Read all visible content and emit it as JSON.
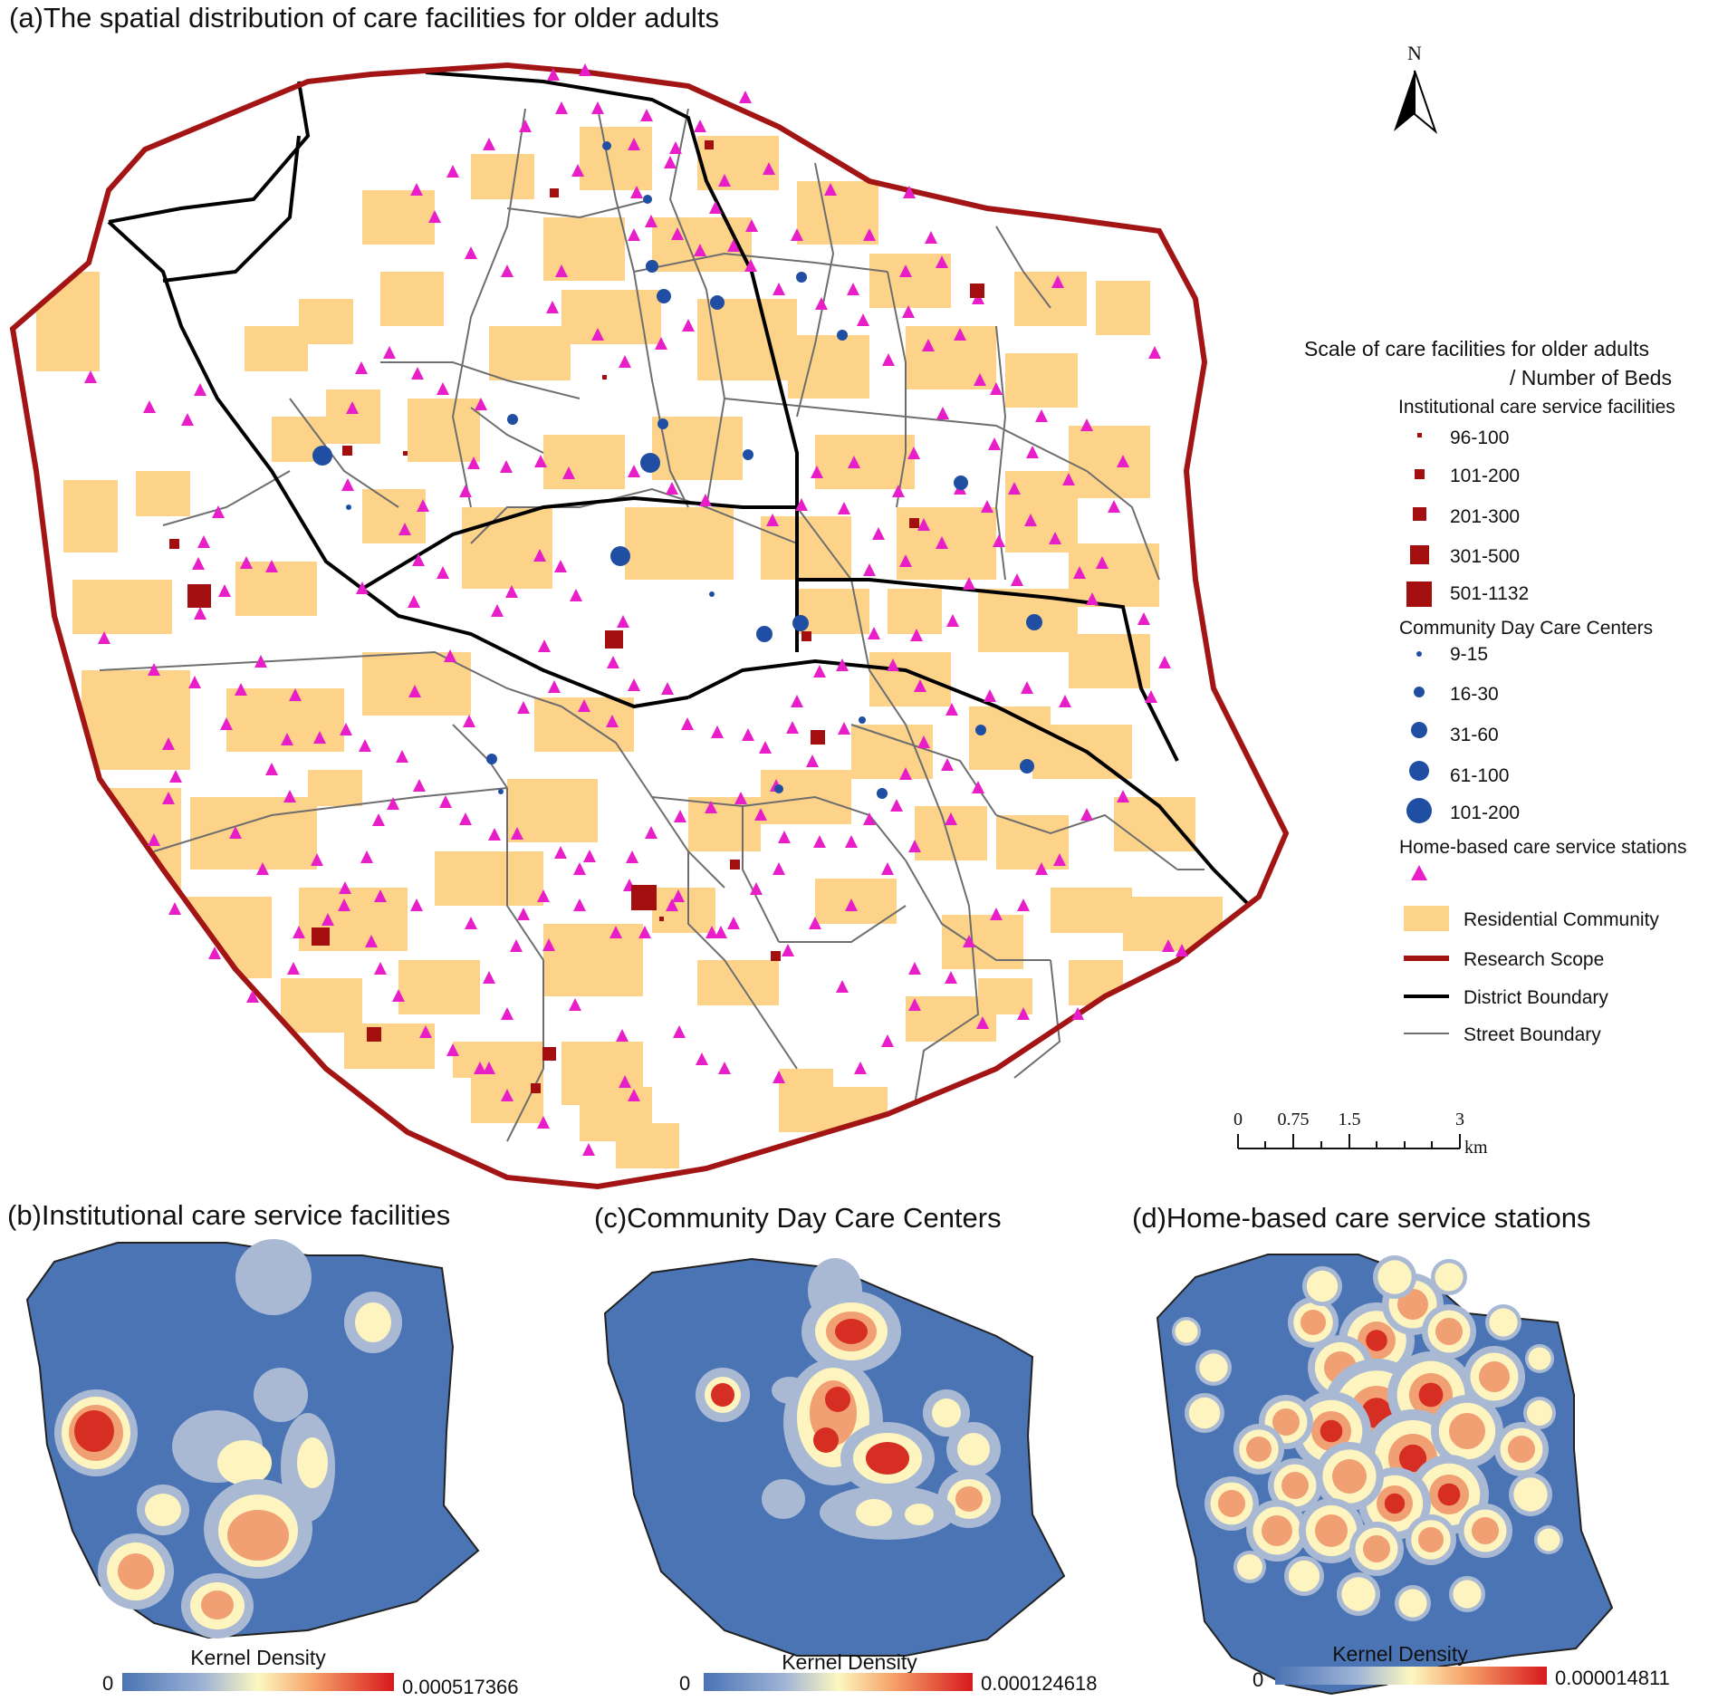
{
  "titles": {
    "a": "(a)The spatial distribution of care facilities for older adults",
    "b": "(b)Institutional care service facilities",
    "c": "(c)Community Day Care Centers",
    "d": "(d)Home-based care service stations"
  },
  "north_label": "N",
  "legend": {
    "heading_line1": "Scale of care facilities for older adults",
    "heading_line2": "/ Number of Beds",
    "institutional_title": "Institutional care service facilities",
    "institutional_classes": [
      "96-100",
      "101-200",
      "201-300",
      "301-500",
      "501-1132"
    ],
    "community_title": "Community Day Care Centers",
    "community_classes": [
      "9-15",
      "16-30",
      "31-60",
      "61-100",
      "101-200"
    ],
    "home_title": "Home-based care service stations",
    "residential": "Residential Community",
    "research_scope": "Research Scope",
    "district_boundary": "District Boundary",
    "street_boundary": "Street Boundary"
  },
  "scale_bar": {
    "ticks": [
      "0",
      "0.75",
      "1.5",
      "3"
    ],
    "unit": "km"
  },
  "kernel_density": {
    "label": "Kernel Density",
    "b": {
      "min": "0",
      "max": "0.000517366"
    },
    "c": {
      "min": "0",
      "max": "0.000124618"
    },
    "d": {
      "min": "0",
      "max": "0.000014811"
    }
  },
  "colors": {
    "research_scope": "#a31515",
    "district_boundary": "#000000",
    "street_boundary": "#6e6e6e",
    "residential": "#fdd38a",
    "institutional": "#a30f0f",
    "community": "#1f4ea3",
    "home": "#e81fc9",
    "density_low": "#4a74b4",
    "density_high": "#d7191c"
  }
}
